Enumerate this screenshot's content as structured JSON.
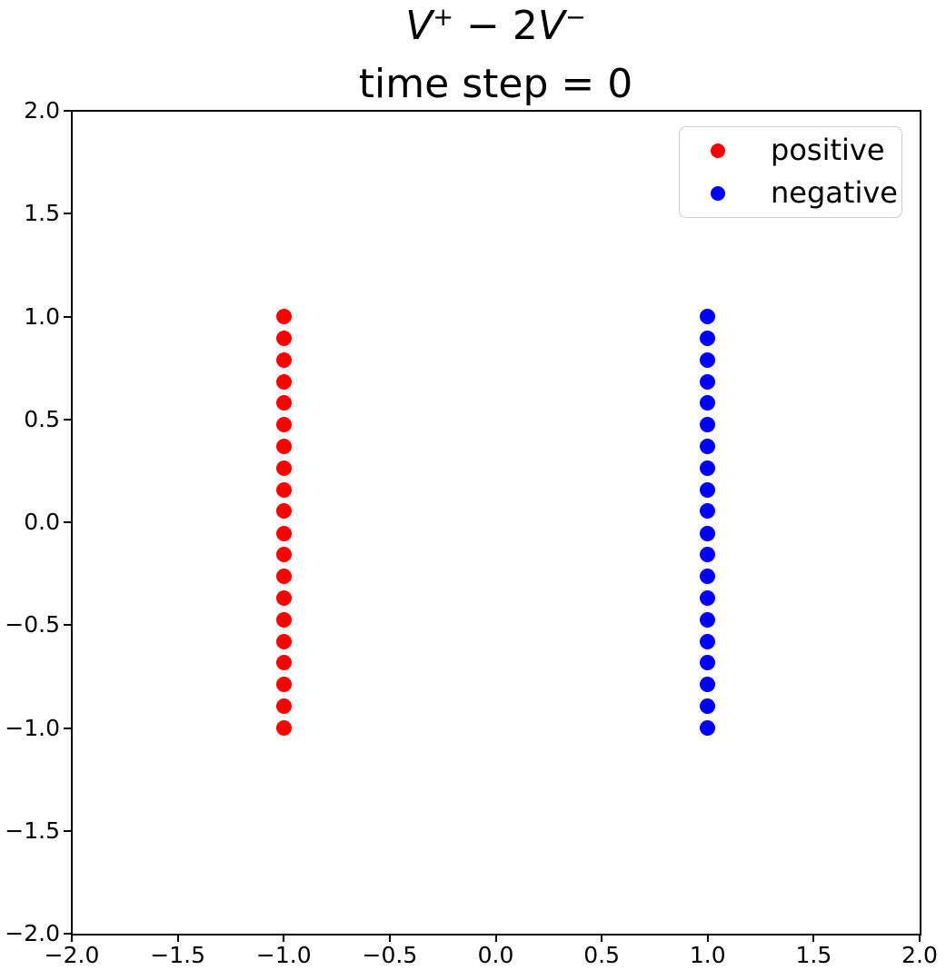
{
  "title": {
    "line1": {
      "v1": "V",
      "sup1": "+",
      "mid": " − 2",
      "v2": "V",
      "sup2": "−"
    },
    "line2": "time step = 0"
  },
  "legend": {
    "items": [
      {
        "label": "positive",
        "color": "#ff0000"
      },
      {
        "label": "negative",
        "color": "#0000ff"
      }
    ]
  },
  "chart_data": {
    "type": "scatter",
    "title": "V⁺ − 2V⁻\ntime step = 0",
    "xlabel": "",
    "ylabel": "",
    "xlim": [
      -2.0,
      2.0
    ],
    "ylim": [
      -2.0,
      2.0
    ],
    "x_ticks": [
      -2.0,
      -1.5,
      -1.0,
      -0.5,
      0.0,
      0.5,
      1.0,
      1.5,
      2.0
    ],
    "y_ticks": [
      -2.0,
      -1.5,
      -1.0,
      -0.5,
      0.0,
      0.5,
      1.0,
      1.5,
      2.0
    ],
    "grid": false,
    "legend_position": "upper right",
    "marker_shape": "circle",
    "series": [
      {
        "name": "positive",
        "color": "#ff0000",
        "x": [
          -1.0,
          -1.0,
          -1.0,
          -1.0,
          -1.0,
          -1.0,
          -1.0,
          -1.0,
          -1.0,
          -1.0,
          -1.0,
          -1.0,
          -1.0,
          -1.0,
          -1.0,
          -1.0,
          -1.0,
          -1.0,
          -1.0,
          -1.0
        ],
        "y": [
          -1.0,
          -0.895,
          -0.789,
          -0.684,
          -0.579,
          -0.474,
          -0.368,
          -0.263,
          -0.158,
          -0.053,
          0.053,
          0.158,
          0.263,
          0.368,
          0.474,
          0.579,
          0.684,
          0.789,
          0.895,
          1.0
        ]
      },
      {
        "name": "negative",
        "color": "#0000ff",
        "x": [
          1.0,
          1.0,
          1.0,
          1.0,
          1.0,
          1.0,
          1.0,
          1.0,
          1.0,
          1.0,
          1.0,
          1.0,
          1.0,
          1.0,
          1.0,
          1.0,
          1.0,
          1.0,
          1.0,
          1.0
        ],
        "y": [
          -1.0,
          -0.895,
          -0.789,
          -0.684,
          -0.579,
          -0.474,
          -0.368,
          -0.263,
          -0.158,
          -0.053,
          0.053,
          0.158,
          0.263,
          0.368,
          0.474,
          0.579,
          0.684,
          0.789,
          0.895,
          1.0
        ]
      }
    ]
  }
}
